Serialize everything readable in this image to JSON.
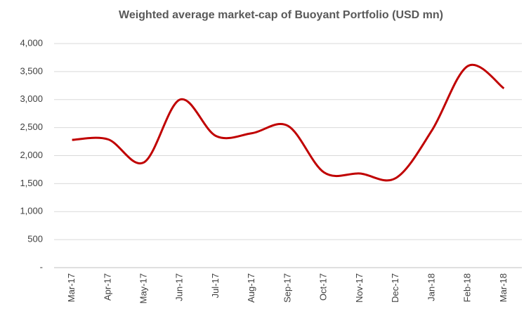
{
  "chart_data": {
    "type": "line",
    "title": "Weighted average market-cap of Buoyant Portfolio (USD mn)",
    "categories": [
      "Mar-17",
      "Apr-17",
      "May-17",
      "Jun-17",
      "Jul-17",
      "Aug-17",
      "Sep-17",
      "Oct-17",
      "Nov-17",
      "Dec-17",
      "Jan-18",
      "Feb-18",
      "Mar-18"
    ],
    "series": [
      {
        "name": "Weighted average market-cap",
        "color": "#c00000",
        "values": [
          2280,
          2290,
          1880,
          3000,
          2350,
          2400,
          2530,
          1700,
          1680,
          1600,
          2450,
          3600,
          3200
        ]
      }
    ],
    "ylim": [
      0,
      4000
    ],
    "yticks": [
      {
        "value": 0,
        "label": "-"
      },
      500,
      {
        "value": 1000,
        "label": "1,000"
      },
      {
        "value": 1500,
        "label": "1,500"
      },
      {
        "value": 2000,
        "label": "2,000"
      },
      {
        "value": 2500,
        "label": "2,500"
      },
      {
        "value": 3000,
        "label": "3,000"
      },
      {
        "value": 3500,
        "label": "3,500"
      },
      {
        "value": 4000,
        "label": "4,000"
      }
    ],
    "grid": true,
    "smooth": true
  }
}
